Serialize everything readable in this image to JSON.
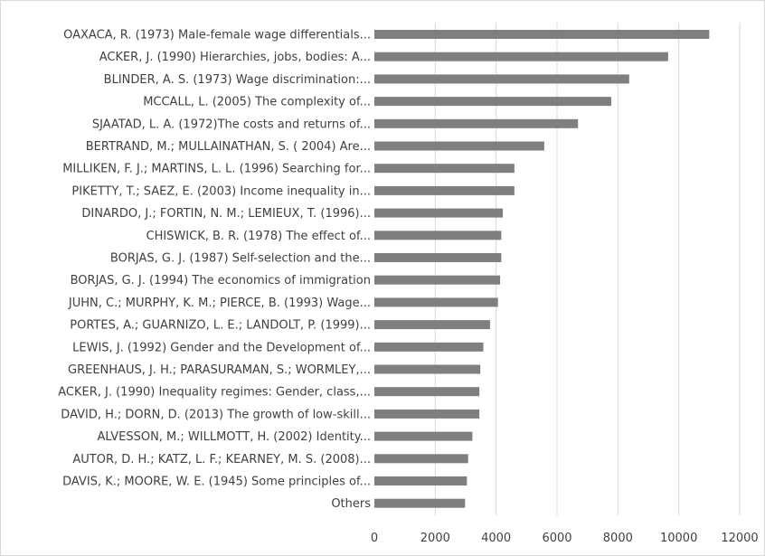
{
  "chart_data": {
    "type": "bar",
    "orientation": "horizontal",
    "title": "",
    "xlabel": "",
    "ylabel": "",
    "xlim": [
      0,
      12000
    ],
    "xticks": [
      "0",
      "2000",
      "4000",
      "6000",
      "8000",
      "10000",
      "12000"
    ],
    "grid": true,
    "legend": "none",
    "bar_color": "#7f7f7f",
    "categories": [
      "OAXACA, R. (1973) Male-female wage differentials...",
      "ACKER, J. (1990) Hierarchies, jobs, bodies: A...",
      "BLINDER, A. S. (1973) Wage discrimination:...",
      "MCCALL, L. (2005) The complexity of...",
      "SJAATAD, L. A. (1972)The costs and returns of...",
      "BERTRAND, M.; MULLAINATHAN, S. ( 2004) Are...",
      "MILLIKEN, F. J.; MARTINS, L. L. (1996) Searching for...",
      "PIKETTY, T.; SAEZ, E. (2003) Income inequality in...",
      "DINARDO, J.; FORTIN, N. M.; LEMIEUX, T. (1996)...",
      "CHISWICK, B. R. (1978) The effect of...",
      "BORJAS, G. J. (1987) Self-selection and the...",
      "BORJAS, G. J. (1994) The economics of immigration",
      "JUHN, C.; MURPHY, K. M.; PIERCE, B. (1993) Wage...",
      "PORTES, A.; GUARNIZO, L. E.; LANDOLT, P. (1999)...",
      "LEWIS, J. (1992) Gender and the Development of...",
      "GREENHAUS, J. H.; PARASURAMAN, S.; WORMLEY,...",
      "ACKER, J. (1990) Inequality regimes: Gender, class,...",
      "DAVID, H.; DORN, D. (2013) The growth of low-skill...",
      "ALVESSON, M.; WILLMOTT, H. (2002) Identity...",
      "AUTOR, D. H.; KATZ, L. F.; KEARNEY, M. S. (2008)...",
      "DAVIS, K.; MOORE, W. E. (1945) Some principles of...",
      "Others"
    ],
    "values": [
      11000,
      9650,
      8370,
      7780,
      6690,
      5580,
      4600,
      4600,
      4220,
      4170,
      4170,
      4130,
      4060,
      3800,
      3580,
      3480,
      3450,
      3450,
      3220,
      3080,
      3040,
      2980
    ]
  }
}
